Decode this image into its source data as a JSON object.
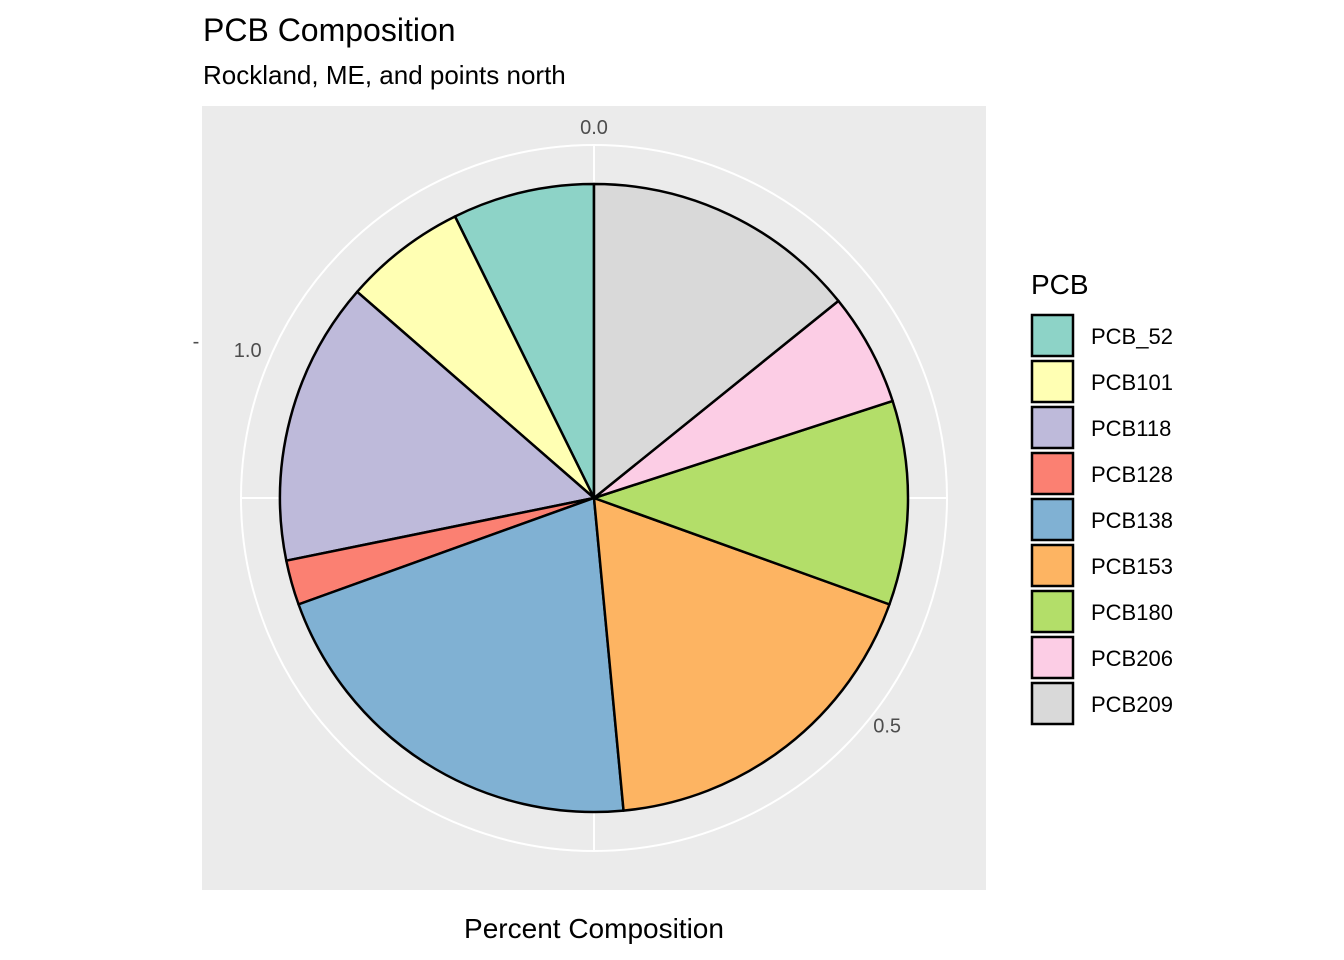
{
  "chart_data": {
    "type": "pie",
    "title": "PCB Composition",
    "subtitle": "Rockland, ME, and points north",
    "xlabel": "Percent Composition",
    "ylabel": "",
    "y_tick": "-",
    "theta_ticks": [
      {
        "value": 0.0,
        "label": "0.0"
      },
      {
        "value": 0.5,
        "label": "0.5"
      },
      {
        "value": 1.0,
        "label": "1.0"
      }
    ],
    "ylim": [
      0,
      1
    ],
    "legend_title": "PCB",
    "legend_position": "right",
    "grid": true,
    "categories": [
      "PCB_52",
      "PCB101",
      "PCB118",
      "PCB128",
      "PCB138",
      "PCB153",
      "PCB180",
      "PCB206",
      "PCB209"
    ],
    "values": [
      0.073,
      0.063,
      0.146,
      0.023,
      0.21,
      0.18,
      0.105,
      0.058,
      0.142
    ],
    "colors": [
      "#8DD3C7",
      "#FFFFB3",
      "#BEBADA",
      "#FB8072",
      "#80B1D3",
      "#FDB462",
      "#B3DE69",
      "#FCCDE5",
      "#D9D9D9"
    ],
    "panel_background": "#EBEBEB",
    "gridline_color": "#FFFFFF"
  }
}
